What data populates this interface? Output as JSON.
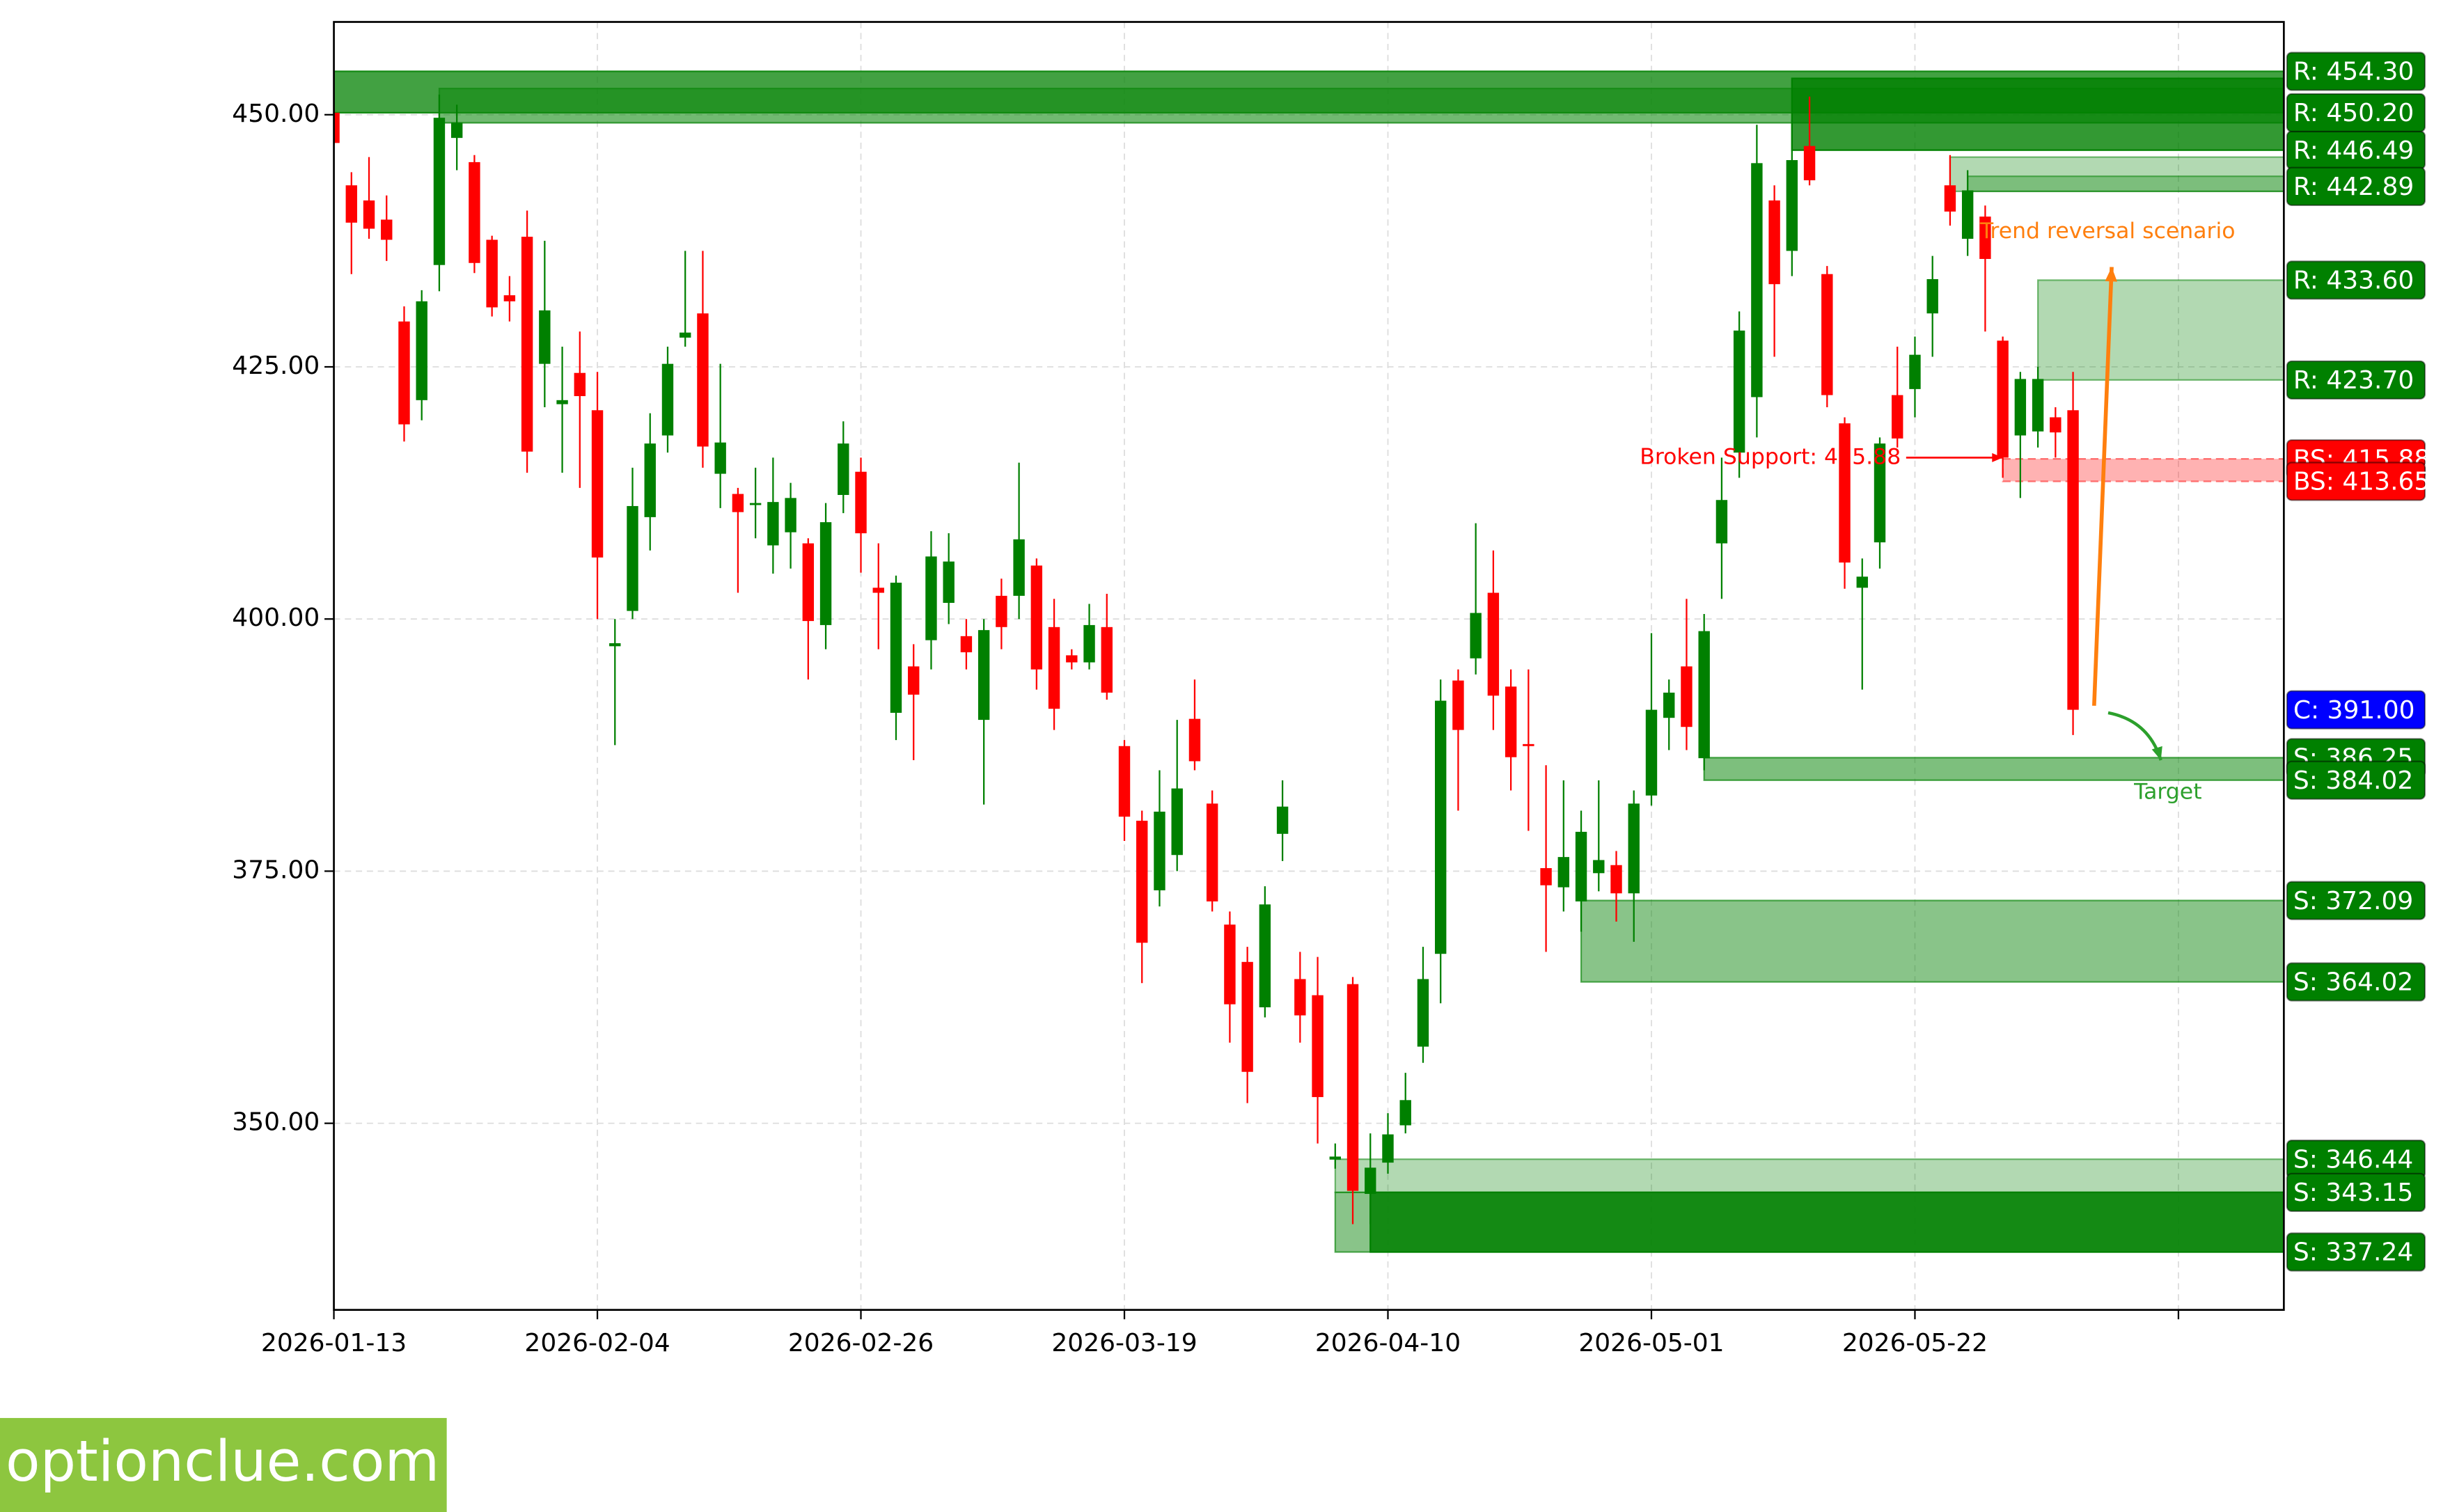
{
  "chart_data": {
    "type": "candlestick",
    "up_color": "#008000",
    "down_color": "#ff0000",
    "open": [
      450.2,
      443.0,
      441.5,
      439.6,
      429.5,
      421.7,
      435.1,
      447.7,
      445.3,
      437.6,
      432.1,
      437.9,
      425.3,
      421.3,
      424.4,
      420.7,
      397.3,
      400.8,
      410.1,
      418.2,
      427.9,
      430.3,
      414.4,
      412.4,
      411.3,
      407.3,
      408.6,
      407.5,
      399.4,
      412.3,
      414.6,
      403.1,
      390.7,
      395.3,
      397.9,
      401.6,
      398.3,
      390.0,
      402.3,
      402.3,
      405.3,
      399.2,
      396.4,
      395.7,
      399.2,
      387.4,
      380.0,
      373.1,
      376.6,
      390.1,
      381.7,
      369.7,
      366.0,
      361.5,
      378.7,
      364.3,
      362.7,
      346.4,
      363.8,
      343.0,
      346.1,
      349.8,
      357.6,
      366.8,
      393.9,
      396.1,
      402.6,
      393.3,
      387.6,
      375.3,
      373.4,
      372.0,
      374.8,
      375.6,
      372.8,
      382.5,
      390.2,
      395.3,
      386.2,
      407.5,
      416.5,
      422.0,
      441.5,
      436.5,
      446.9,
      434.2,
      419.4,
      403.1,
      407.6,
      422.2,
      422.8,
      430.3,
      443.0,
      437.7,
      439.9,
      427.6,
      418.2,
      418.6,
      420.0,
      420.7
    ],
    "high": [
      451,
      444.3,
      445.8,
      442,
      431,
      432.6,
      452,
      451,
      446,
      438,
      434,
      440.5,
      437.5,
      427,
      428.5,
      424.5,
      400,
      415,
      420.4,
      427,
      436.5,
      436.5,
      425.3,
      413,
      415,
      416,
      413.5,
      408,
      411.5,
      419.6,
      416,
      407.5,
      404.3,
      397.5,
      408.7,
      408.5,
      400,
      400,
      404,
      415.5,
      406,
      402,
      397,
      401.5,
      402.5,
      388,
      381,
      385,
      390,
      394,
      383,
      371,
      367.5,
      373.5,
      384,
      367,
      366.5,
      348,
      364.5,
      349,
      351,
      355,
      367.5,
      394,
      395,
      409.5,
      406.8,
      395,
      395,
      385.5,
      384,
      381,
      384,
      377,
      383,
      398.6,
      394,
      402,
      400.5,
      416,
      430.5,
      449,
      443,
      449.5,
      451.8,
      435,
      420,
      406,
      418,
      427,
      428,
      436,
      446,
      444.5,
      441,
      428,
      424.5,
      425,
      421,
      424.5
    ],
    "low": [
      447,
      434.2,
      437.7,
      435.5,
      417.6,
      419.7,
      432.5,
      444.5,
      434.3,
      430,
      429.5,
      414.5,
      421,
      414.5,
      413,
      400,
      387.5,
      400,
      406.8,
      416.5,
      427,
      415,
      411,
      402.6,
      408,
      404.5,
      405,
      394,
      397,
      410.5,
      404.6,
      397,
      388,
      386,
      395,
      399.5,
      395,
      381.6,
      397,
      400,
      393,
      389,
      395,
      395,
      392,
      378,
      363.9,
      371.5,
      375,
      385,
      371,
      358,
      352,
      360.5,
      376,
      358,
      348,
      345.5,
      340,
      340,
      345,
      349,
      356,
      361.9,
      381,
      394.5,
      389,
      383,
      379,
      367,
      371,
      369,
      373,
      370,
      368,
      381.5,
      387,
      387,
      385,
      402,
      414,
      418,
      426,
      434,
      443,
      421,
      403,
      393,
      405,
      417,
      420,
      426,
      439,
      436,
      428.5,
      414,
      412,
      417,
      416,
      388.5
    ],
    "close": [
      447.2,
      439.3,
      438.7,
      437.6,
      419.3,
      431.5,
      449.7,
      449.2,
      435.3,
      430.9,
      431.5,
      416.6,
      430.6,
      421.7,
      422.1,
      406.1,
      397.6,
      411.2,
      417.4,
      425.3,
      428.4,
      417.1,
      417.5,
      410.6,
      411.5,
      411.6,
      412.0,
      399.8,
      409.6,
      417.4,
      408.5,
      402.6,
      403.6,
      392.5,
      406.2,
      405.7,
      396.7,
      398.9,
      399.2,
      407.9,
      395.0,
      391.1,
      395.7,
      399.4,
      392.7,
      380.4,
      367.9,
      380.9,
      383.2,
      385.9,
      372.0,
      361.8,
      355.1,
      371.7,
      381.4,
      360.7,
      352.6,
      346.7,
      343.3,
      345.6,
      348.9,
      352.3,
      364.3,
      391.9,
      389.0,
      400.6,
      392.4,
      386.3,
      387.4,
      373.6,
      376.4,
      378.9,
      376.1,
      372.8,
      381.7,
      391.0,
      392.7,
      389.3,
      398.8,
      411.8,
      428.6,
      445.2,
      433.2,
      445.5,
      443.5,
      422.2,
      405.6,
      404.2,
      417.4,
      417.9,
      426.2,
      433.7,
      440.4,
      442.5,
      435.7,
      416.0,
      423.8,
      423.8,
      418.5,
      391.0
    ],
    "xlim": [
      0,
      111
    ],
    "xticks": [
      {
        "value": 0,
        "label": "2026-01-13"
      },
      {
        "value": 15,
        "label": "2026-02-04"
      },
      {
        "value": 30,
        "label": "2026-02-26"
      },
      {
        "value": 45,
        "label": "2026-03-19"
      },
      {
        "value": 60,
        "label": "2026-04-10"
      },
      {
        "value": 75,
        "label": "2026-05-01"
      },
      {
        "value": 90,
        "label": "2026-05-22"
      },
      {
        "value": 105,
        "label": null
      }
    ],
    "ylim": [
      331.5,
      459.2
    ],
    "yticks": [
      {
        "value": 350,
        "label": "350.00"
      },
      {
        "value": 375,
        "label": "375.00"
      },
      {
        "value": 400,
        "label": "400.00"
      },
      {
        "value": 425,
        "label": "425.00"
      },
      {
        "value": 450,
        "label": "450.00"
      }
    ],
    "grid": true,
    "zones": [
      {
        "start": 0,
        "low": 450.2,
        "high": 454.3,
        "color": "#138a13",
        "opacity": 0.8
      },
      {
        "start": 6,
        "low": 449.2,
        "high": 452.6,
        "color": "#138a13",
        "opacity": 0.6
      },
      {
        "start": 83,
        "low": 446.49,
        "high": 453.6,
        "color": "#008000",
        "opacity": 0.8
      },
      {
        "start": 92,
        "low": 442.4,
        "high": 445.8,
        "color": "#008000",
        "opacity": 0.3
      },
      {
        "start": 93,
        "low": 442.4,
        "high": 443.9,
        "color": "#008000",
        "opacity": 0.3
      },
      {
        "start": 97,
        "low": 423.7,
        "high": 433.6,
        "color": "#008000",
        "opacity": 0.3
      },
      {
        "start": 95,
        "low": 413.65,
        "high": 415.88,
        "color": "#ff0000",
        "opacity": 0.3,
        "dashed": true
      },
      {
        "start": 78,
        "low": 384.02,
        "high": 386.25,
        "color": "#138a13",
        "opacity": 0.55
      },
      {
        "start": 71,
        "low": 364.02,
        "high": 372.09,
        "color": "#138a13",
        "opacity": 0.5
      },
      {
        "start": 57,
        "low": 343.15,
        "high": 346.44,
        "color": "#008000",
        "opacity": 0.3
      },
      {
        "start": 57,
        "low": 337.24,
        "high": 343.15,
        "color": "#138a13",
        "opacity": 0.5
      },
      {
        "start": 59,
        "low": 337.24,
        "high": 343.15,
        "color": "#008000",
        "opacity": 0.85
      }
    ],
    "levels": [
      {
        "label": "R: 454.30",
        "value": 454.3,
        "color": "#008000"
      },
      {
        "label": "R: 446.49",
        "value": 446.49,
        "color": "#008000"
      },
      {
        "label": "R: 450.20",
        "value": 450.2,
        "color": "#008000"
      },
      {
        "label": "R: 442.89",
        "value": 442.89,
        "color": "#008000"
      },
      {
        "label": "R: 433.60",
        "value": 433.6,
        "color": "#008000"
      },
      {
        "label": "R: 423.70",
        "value": 423.7,
        "color": "#008000"
      },
      {
        "label": "BS: 415.88",
        "value": 415.88,
        "color": "#ff0000"
      },
      {
        "label": "BS: 413.65",
        "value": 413.65,
        "color": "#ff0000"
      },
      {
        "label": "C: 391.00",
        "value": 391.0,
        "color": "#0000ff"
      },
      {
        "label": "S: 386.25",
        "value": 386.25,
        "color": "#008000"
      },
      {
        "label": "S: 384.02",
        "value": 384.02,
        "color": "#008000"
      },
      {
        "label": "S: 372.09",
        "value": 372.09,
        "color": "#008000"
      },
      {
        "label": "S: 364.02",
        "value": 364.02,
        "color": "#008000"
      },
      {
        "label": "S: 346.44",
        "value": 346.44,
        "color": "#008000"
      },
      {
        "label": "S: 343.15",
        "value": 343.15,
        "color": "#008000"
      },
      {
        "label": "S: 337.24",
        "value": 337.24,
        "color": "#008000"
      }
    ],
    "annotations": [
      {
        "text": "Broken Support: 415.88",
        "x": 89.2,
        "y": 416.0,
        "color": "#ff0000",
        "anchor": "end"
      },
      {
        "text": "Trend reversal scenario",
        "x": 93.7,
        "y": 438.4,
        "color": "#ff7f0e",
        "anchor": "start"
      },
      {
        "text": "Target",
        "x": 104.4,
        "y": 382.8,
        "color": "#2ca02c",
        "anchor": "middle"
      }
    ],
    "arrows": [
      {
        "from": [
          89.5,
          416.0
        ],
        "to": [
          95,
          416.0
        ],
        "color": "#ff0000",
        "curve": 0,
        "width": 1.2
      },
      {
        "from": [
          100.2,
          391.4
        ],
        "to": [
          101.2,
          434.9
        ],
        "color": "#ff7f0e",
        "curve": 0,
        "width": 2.5
      },
      {
        "from": [
          101,
          390.7
        ],
        "to": [
          104,
          386.0
        ],
        "color": "#2ca02c",
        "curve": -0.3,
        "width": 2
      }
    ]
  },
  "watermark": "optionclue.com"
}
